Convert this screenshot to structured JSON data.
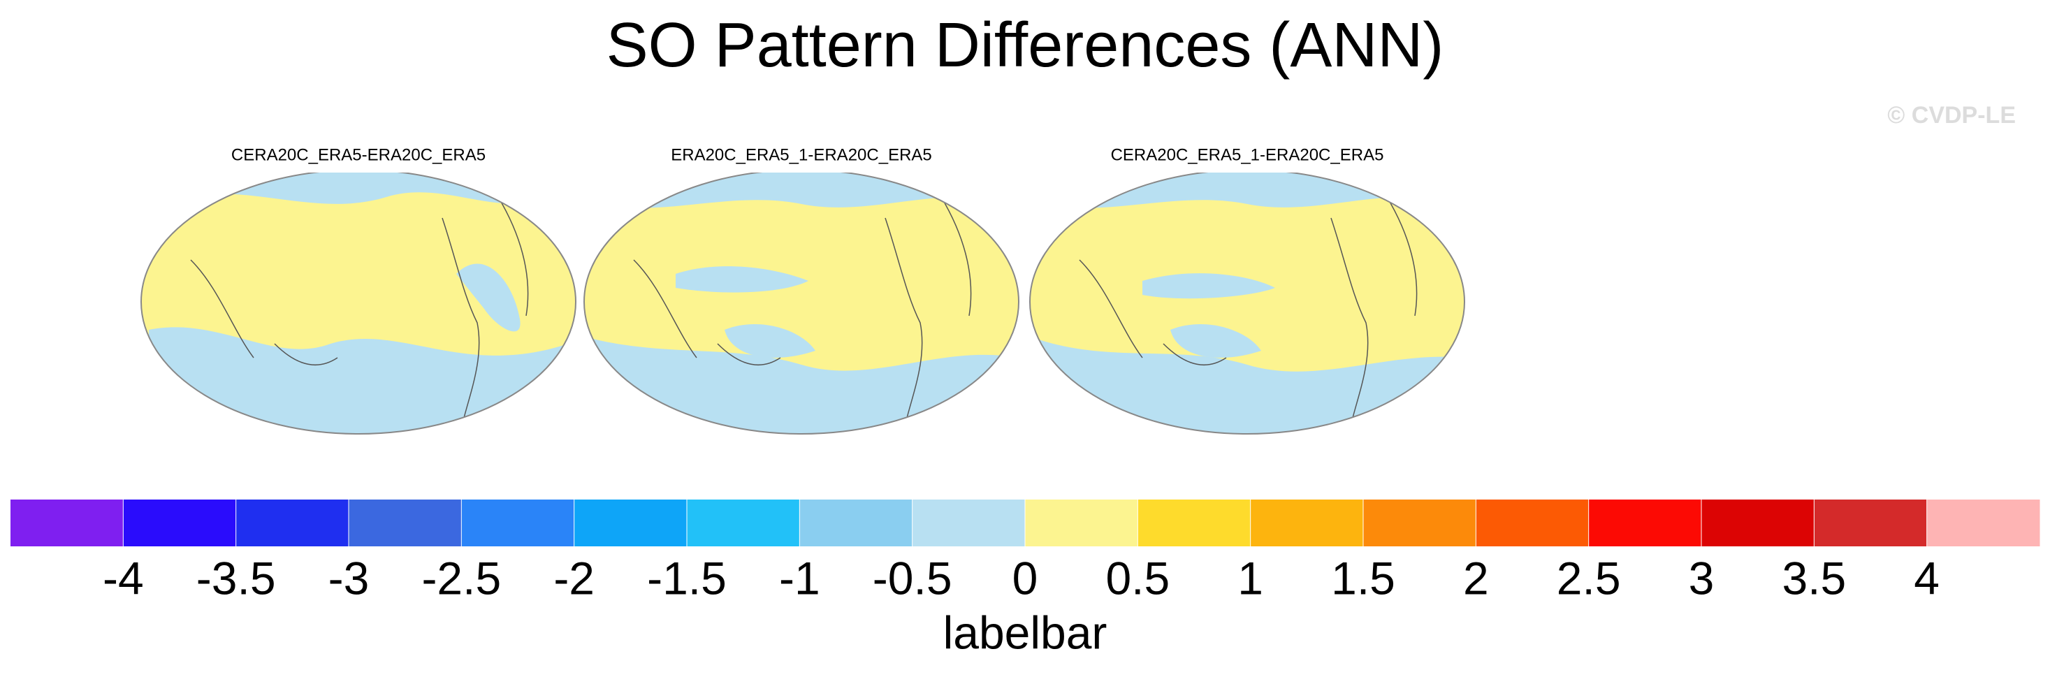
{
  "title": "SO Pattern Differences (ANN)",
  "watermark": "© CVDP-LE",
  "panels": [
    {
      "title": "CERA20C_ERA5-ERA20C_ERA5"
    },
    {
      "title": "ERA20C_ERA5_1-ERA20C_ERA5"
    },
    {
      "title": "CERA20C_ERA5_1-ERA20C_ERA5"
    }
  ],
  "colorbar": {
    "colors": [
      "#7f1ff0",
      "#2a0cfc",
      "#1f2ff0",
      "#3b68e0",
      "#2a84f8",
      "#0ea5f8",
      "#22c1f8",
      "#8acef0",
      "#b8e0f2",
      "#fcf490",
      "#fedb2c",
      "#fdb40e",
      "#fc8a0a",
      "#fc5a04",
      "#fc0a04",
      "#dc0404",
      "#d42a2a",
      "#feb4b4"
    ],
    "ticks": [
      -4,
      -3.5,
      -3,
      -2.5,
      -2,
      -1.5,
      -1,
      -0.5,
      0,
      0.5,
      1,
      1.5,
      2,
      2.5,
      3,
      3.5,
      4
    ],
    "label": "labelbar"
  }
}
